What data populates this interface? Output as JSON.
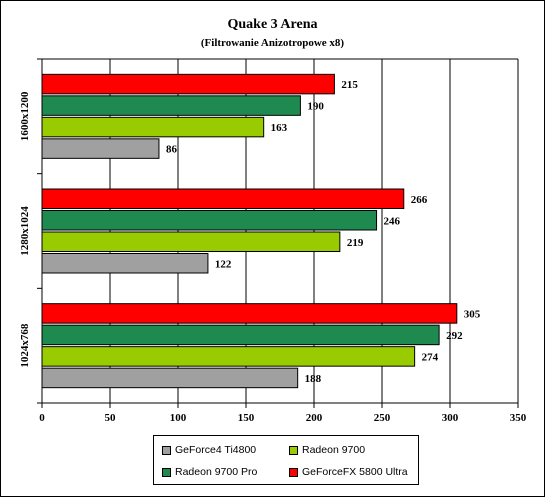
{
  "chart_data": {
    "type": "bar",
    "orientation": "horizontal",
    "title": "Quake 3 Arena",
    "subtitle": "(Filtrowanie Anizotropowe x8)",
    "categories": [
      "1600x1200",
      "1280x1024",
      "1024x768"
    ],
    "series": [
      {
        "name": "GeForce4 Ti4800",
        "color": "#a0a0a0",
        "values": [
          86,
          122,
          188
        ]
      },
      {
        "name": "Radeon 9700",
        "color": "#99cc00",
        "values": [
          163,
          219,
          274
        ]
      },
      {
        "name": "Radeon 9700 Pro",
        "color": "#1e8a50",
        "values": [
          190,
          246,
          292
        ]
      },
      {
        "name": "GeForceFX 5800 Ultra",
        "color": "#ff0000",
        "values": [
          215,
          266,
          305
        ]
      }
    ],
    "xlim": [
      0,
      350
    ],
    "xticks": [
      0,
      50,
      100,
      150,
      200,
      250,
      300,
      350
    ],
    "grid": true,
    "legend": "bottom"
  }
}
